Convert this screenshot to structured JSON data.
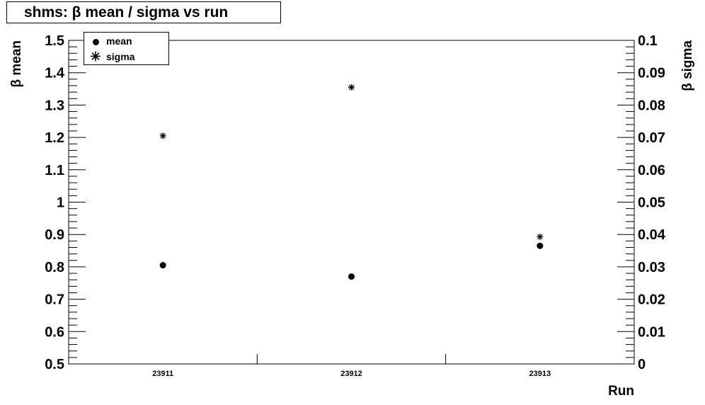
{
  "chart_data": {
    "type": "scatter",
    "title": "shms:  β mean / sigma vs run",
    "xlabel": "Run",
    "categories": [
      "23911",
      "23912",
      "23913"
    ],
    "y_left": {
      "label": "β mean",
      "lim": [
        0.5,
        1.5
      ],
      "ticks": [
        "0.5",
        "0.6",
        "0.7",
        "0.8",
        "0.9",
        "1",
        "1.1",
        "1.2",
        "1.3",
        "1.4",
        "1.5"
      ]
    },
    "y_right": {
      "label": "β sigma",
      "lim": [
        0,
        0.1
      ],
      "ticks": [
        "0",
        "0.01",
        "0.02",
        "0.03",
        "0.04",
        "0.05",
        "0.06",
        "0.07",
        "0.08",
        "0.09",
        "0.1"
      ]
    },
    "series": [
      {
        "name": "mean",
        "marker": "dot",
        "axis": "left",
        "values": [
          0.805,
          0.77,
          0.865
        ]
      },
      {
        "name": "sigma",
        "marker": "star",
        "axis": "right",
        "values": [
          0.0705,
          0.0855,
          0.0393
        ]
      }
    ],
    "legend_position": "top-left",
    "grid": false,
    "colors": {
      "marker": "#000000",
      "axis": "#000000"
    }
  }
}
